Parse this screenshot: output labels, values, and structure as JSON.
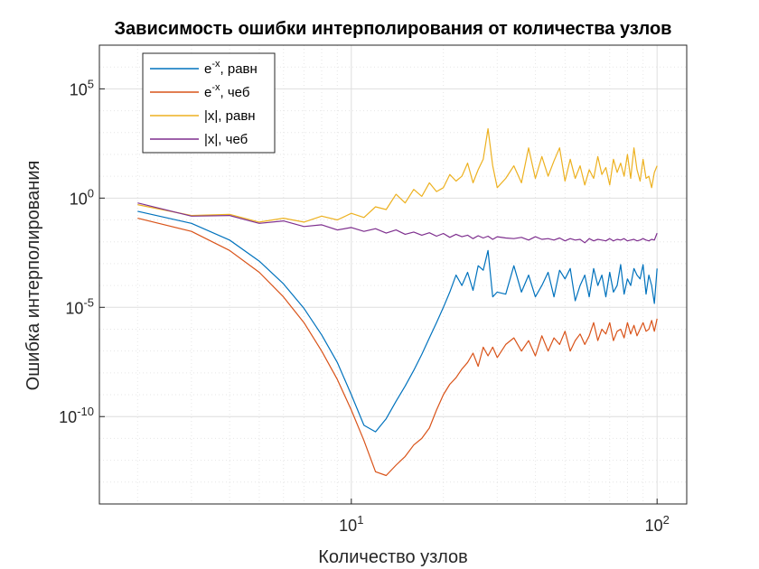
{
  "chart_data": {
    "type": "line",
    "title": "Зависимость ошибки интерполирования от количества узлов",
    "xlabel": "Количество узлов",
    "ylabel": "Ошибка интерполирования",
    "xscale": "log",
    "yscale": "log",
    "xlim": [
      1.5,
      125
    ],
    "ylim": [
      1e-14,
      10000000.0
    ],
    "x_ticks": [
      {
        "value": 10,
        "base": "10",
        "exp": "1"
      },
      {
        "value": 100,
        "base": "10",
        "exp": "2"
      }
    ],
    "y_ticks": [
      {
        "value": 1e-10,
        "base": "10",
        "exp": "-10"
      },
      {
        "value": 1e-05,
        "base": "10",
        "exp": "-5"
      },
      {
        "value": 1,
        "base": "10",
        "exp": "0"
      },
      {
        "value": 100000.0,
        "base": "10",
        "exp": "5"
      }
    ],
    "grid": true,
    "minor_grid": true,
    "legend_position": "top-left",
    "series": [
      {
        "name": "e^{-x}, равн",
        "legend_base": "e",
        "legend_sup": "-x",
        "legend_rest": ", равн",
        "color": "#0072BD",
        "x": [
          2,
          3,
          4,
          5,
          6,
          7,
          8,
          9,
          10,
          11,
          12,
          13,
          14,
          15,
          16,
          17,
          18,
          19,
          20,
          21,
          22,
          23,
          24,
          25,
          26,
          27,
          28,
          29,
          30,
          32,
          34,
          36,
          38,
          40,
          42,
          44,
          46,
          48,
          50,
          52,
          54,
          56,
          58,
          60,
          62,
          64,
          66,
          68,
          70,
          72,
          74,
          76,
          78,
          80,
          82,
          84,
          86,
          88,
          90,
          92,
          94,
          96,
          98,
          100
        ],
        "y": [
          0.25,
          0.07,
          0.012,
          0.0013,
          0.00012,
          9e-06,
          5.5e-07,
          3e-08,
          1e-09,
          4e-11,
          2e-11,
          8e-11,
          5e-10,
          2.5e-09,
          1.3e-08,
          7e-08,
          4e-07,
          2e-06,
          1e-05,
          5e-05,
          0.0003,
          0.0001,
          0.0004,
          6e-05,
          0.0008,
          0.0005,
          0.004,
          3e-05,
          5e-05,
          4e-05,
          0.0008,
          5e-05,
          0.0003,
          3e-05,
          0.0001,
          0.0004,
          3e-05,
          0.0005,
          0.0002,
          0.0006,
          2e-05,
          0.0001,
          0.0003,
          3e-05,
          0.0006,
          0.0001,
          0.0003,
          3e-05,
          0.0004,
          5e-05,
          0.0001,
          0.0009,
          4e-05,
          0.0002,
          0.0001,
          0.0006,
          0.0003,
          0.0002,
          0.0009,
          4e-05,
          0.0003,
          0.0001,
          1.5e-05,
          0.0006
        ]
      },
      {
        "name": "e^{-x}, чеб",
        "legend_base": "e",
        "legend_sup": "-x",
        "legend_rest": ", чеб",
        "color": "#D95319",
        "x": [
          2,
          3,
          4,
          5,
          6,
          7,
          8,
          9,
          10,
          11,
          12,
          13,
          14,
          15,
          16,
          17,
          18,
          19,
          20,
          21,
          22,
          23,
          24,
          25,
          26,
          27,
          28,
          29,
          30,
          32,
          34,
          36,
          38,
          40,
          42,
          44,
          46,
          48,
          50,
          52,
          54,
          56,
          58,
          60,
          62,
          64,
          66,
          68,
          70,
          72,
          74,
          76,
          78,
          80,
          82,
          84,
          86,
          88,
          90,
          92,
          94,
          96,
          98,
          100
        ],
        "y": [
          0.12,
          0.03,
          0.004,
          0.0004,
          3e-05,
          2e-06,
          1e-07,
          5e-09,
          2e-10,
          8e-12,
          3e-13,
          2e-13,
          6e-13,
          1.5e-12,
          5e-12,
          1e-11,
          3e-11,
          2e-10,
          1e-09,
          3e-09,
          6e-09,
          1.5e-08,
          3e-08,
          8e-08,
          2e-08,
          1.5e-07,
          6e-08,
          1.5e-07,
          5e-08,
          2e-07,
          4e-07,
          1e-07,
          3e-07,
          6e-08,
          5e-07,
          1e-07,
          4e-07,
          2e-07,
          8e-07,
          1e-07,
          3e-07,
          6e-07,
          2e-07,
          5e-07,
          2e-06,
          3e-07,
          1e-06,
          6e-07,
          2e-06,
          3e-07,
          8e-07,
          1e-06,
          4e-07,
          2e-06,
          6e-07,
          1.5e-06,
          5e-07,
          1e-06,
          2e-06,
          8e-07,
          1e-06,
          2.5e-06,
          8e-07,
          3e-06
        ]
      },
      {
        "name": "|x|, равн",
        "legend_base": "|x|, равн",
        "legend_sup": "",
        "legend_rest": "",
        "color": "#EDB120",
        "x": [
          2,
          3,
          4,
          5,
          6,
          7,
          8,
          9,
          10,
          11,
          12,
          13,
          14,
          15,
          16,
          17,
          18,
          19,
          20,
          21,
          22,
          23,
          24,
          25,
          26,
          27,
          28,
          29,
          30,
          32,
          34,
          36,
          38,
          40,
          42,
          44,
          46,
          48,
          50,
          52,
          54,
          56,
          58,
          60,
          62,
          64,
          66,
          68,
          70,
          72,
          74,
          76,
          78,
          80,
          82,
          84,
          86,
          88,
          90,
          92,
          94,
          96,
          98,
          100
        ],
        "y": [
          0.5,
          0.16,
          0.18,
          0.08,
          0.12,
          0.08,
          0.15,
          0.1,
          0.2,
          0.13,
          0.4,
          0.3,
          1.5,
          0.6,
          2.5,
          1.2,
          5,
          2,
          3,
          12,
          6,
          10,
          40,
          5,
          20,
          60,
          1500,
          30,
          3,
          8,
          30,
          5,
          200,
          8,
          80,
          10,
          50,
          200,
          6,
          60,
          8,
          30,
          4,
          20,
          8,
          80,
          12,
          25,
          4,
          60,
          15,
          40,
          10,
          100,
          8,
          200,
          20,
          6,
          60,
          8,
          10,
          3,
          15,
          30
        ]
      },
      {
        "name": "|x|, чеб",
        "legend_base": "|x|, чеб",
        "legend_sup": "",
        "legend_rest": "",
        "color": "#7E2F8E",
        "x": [
          2,
          3,
          4,
          5,
          6,
          7,
          8,
          9,
          10,
          11,
          12,
          13,
          14,
          15,
          16,
          17,
          18,
          19,
          20,
          21,
          22,
          23,
          24,
          25,
          26,
          27,
          28,
          29,
          30,
          32,
          34,
          36,
          38,
          40,
          42,
          44,
          46,
          48,
          50,
          52,
          54,
          56,
          58,
          60,
          62,
          64,
          66,
          68,
          70,
          72,
          74,
          76,
          78,
          80,
          82,
          84,
          86,
          88,
          90,
          92,
          94,
          96,
          98,
          100
        ],
        "y": [
          0.6,
          0.15,
          0.16,
          0.07,
          0.09,
          0.05,
          0.06,
          0.035,
          0.045,
          0.03,
          0.04,
          0.025,
          0.035,
          0.022,
          0.028,
          0.02,
          0.026,
          0.018,
          0.024,
          0.016,
          0.022,
          0.017,
          0.02,
          0.014,
          0.019,
          0.015,
          0.018,
          0.013,
          0.017,
          0.015,
          0.014,
          0.016,
          0.012,
          0.017,
          0.013,
          0.014,
          0.012,
          0.015,
          0.011,
          0.014,
          0.012,
          0.013,
          0.009,
          0.014,
          0.011,
          0.013,
          0.012,
          0.011,
          0.014,
          0.011,
          0.013,
          0.012,
          0.014,
          0.011,
          0.012,
          0.013,
          0.011,
          0.012,
          0.014,
          0.012,
          0.011,
          0.013,
          0.012,
          0.025
        ]
      }
    ]
  }
}
